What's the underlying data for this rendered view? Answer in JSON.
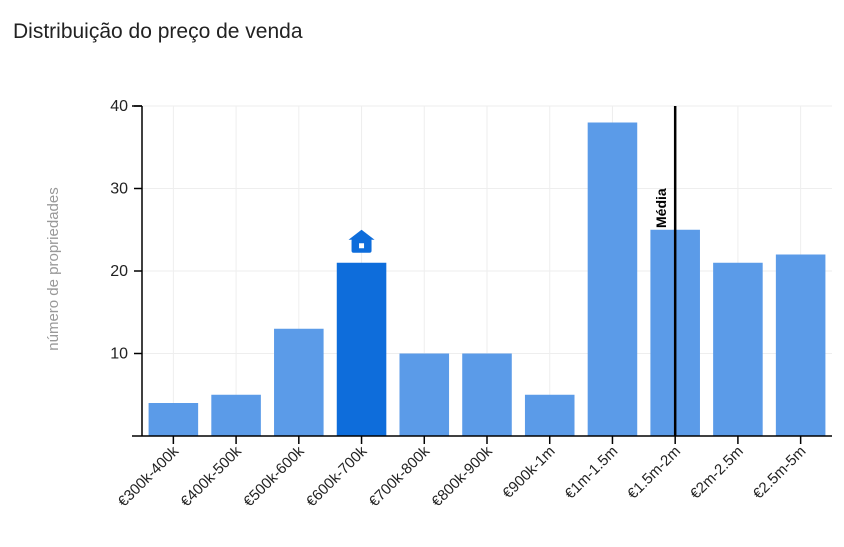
{
  "title": "Distribuição do preço de venda",
  "chart_data": {
    "type": "bar",
    "title": "Distribuição do preço de venda",
    "ylabel": "número de propriedades",
    "xlabel": "",
    "ylim": [
      0,
      40
    ],
    "yticks": [
      10,
      20,
      30,
      40
    ],
    "grid": true,
    "categories": [
      "€300k-400k",
      "€400k-500k",
      "€500k-600k",
      "€600k-700k",
      "€700k-800k",
      "€800k-900k",
      "€900k-1m",
      "€1m-1.5m",
      "€1.5m-2m",
      "€2m-2.5m",
      "€2.5m-5m"
    ],
    "values": [
      4,
      5,
      13,
      21,
      10,
      10,
      5,
      38,
      25,
      21,
      22
    ],
    "highlight_index": 3,
    "highlight_icon": "house-icon",
    "mean_category": "€1.5m-2m",
    "mean_label": "Média",
    "colors": {
      "bar": "#5b9be8",
      "highlight": "#0e6ddb",
      "mean_line": "#000000",
      "grid": "#eeeeee"
    }
  }
}
